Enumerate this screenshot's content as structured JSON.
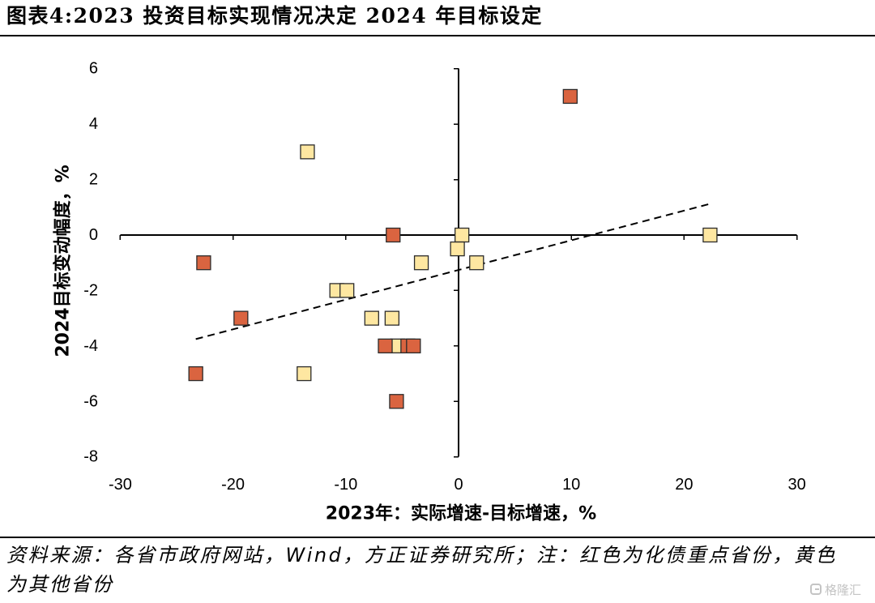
{
  "title": "图表4:2023 投资目标实现情况决定 2024 年目标设定",
  "source": {
    "line1": "资料来源：各省市政府网站，Wind，方正证券研究所；注：红色为化债重点省份，黄色",
    "line2": "为其他省份"
  },
  "watermark": {
    "text": "格隆汇",
    "icon": "g-logo-icon"
  },
  "chart_data": {
    "type": "scatter",
    "xlabel": "2023年：实际增速-目标增速，%",
    "ylabel": "2024目标变动幅度，%",
    "xlim": [
      -30,
      30
    ],
    "ylim": [
      -8,
      6
    ],
    "x_ticks": [
      -30,
      -20,
      -10,
      0,
      10,
      20,
      30
    ],
    "y_ticks": [
      6,
      4,
      2,
      0,
      -2,
      -4,
      -6,
      -8
    ],
    "grid": false,
    "legend": "none",
    "marker": "square",
    "series": [
      {
        "color": "#DA6440",
        "points": [
          {
            "x": 9.9,
            "y": 5
          },
          {
            "x": -5.8,
            "y": 0
          },
          {
            "x": -22.6,
            "y": -1
          },
          {
            "x": -19.3,
            "y": -3
          },
          {
            "x": -23.3,
            "y": -5
          },
          {
            "x": -6.5,
            "y": -4
          },
          {
            "x": -4.5,
            "y": -4
          },
          {
            "x": -4.0,
            "y": -4
          },
          {
            "x": -5.5,
            "y": -6
          }
        ]
      },
      {
        "color": "#FEE7A1",
        "points": [
          {
            "x": -13.4,
            "y": 3
          },
          {
            "x": 0.3,
            "y": 0
          },
          {
            "x": -0.1,
            "y": -0.5
          },
          {
            "x": 22.3,
            "y": 0
          },
          {
            "x": -3.3,
            "y": -1
          },
          {
            "x": 1.6,
            "y": -1
          },
          {
            "x": -10.8,
            "y": -2
          },
          {
            "x": -9.9,
            "y": -2
          },
          {
            "x": -7.7,
            "y": -3
          },
          {
            "x": -5.9,
            "y": -3
          },
          {
            "x": -5.4,
            "y": -4
          },
          {
            "x": -13.7,
            "y": -5
          }
        ]
      }
    ],
    "trendline": {
      "type": "linear",
      "slope": 0.107,
      "intercept": -1.26,
      "x_range": [
        -23.3,
        22.3
      ],
      "style": "dashed",
      "color": "#000000"
    }
  }
}
